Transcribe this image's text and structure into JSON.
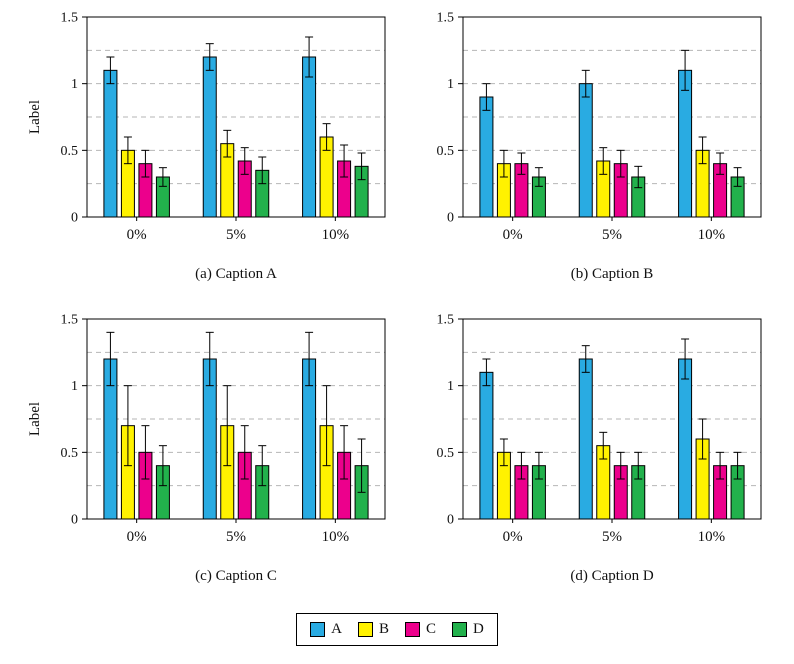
{
  "legend": {
    "position": "bottom-center",
    "entries": [
      {
        "label": "A",
        "color": "#29ABE2"
      },
      {
        "label": "B",
        "color": "#FFF200"
      },
      {
        "label": "C",
        "color": "#EC008C"
      },
      {
        "label": "D",
        "color": "#22B14C"
      }
    ]
  },
  "chart_data": [
    {
      "id": "a",
      "type": "bar",
      "title": "(a) Caption A",
      "ylabel": "Label",
      "categories": [
        "0%",
        "5%",
        "10%"
      ],
      "ylim": [
        0,
        1.5
      ],
      "yticks": [
        "0",
        "0.5",
        "1",
        "1.5"
      ],
      "grid_values": [
        0.25,
        0.5,
        0.75,
        1,
        1.25
      ],
      "grid_style": "dashed",
      "series": [
        {
          "name": "A",
          "values": [
            1.1,
            1.2,
            1.2
          ],
          "errors": [
            0.1,
            0.1,
            0.15
          ]
        },
        {
          "name": "B",
          "values": [
            0.5,
            0.55,
            0.6
          ],
          "errors": [
            0.1,
            0.1,
            0.1
          ]
        },
        {
          "name": "C",
          "values": [
            0.4,
            0.42,
            0.42
          ],
          "errors": [
            0.1,
            0.1,
            0.12
          ]
        },
        {
          "name": "D",
          "values": [
            0.3,
            0.35,
            0.38
          ],
          "errors": [
            0.07,
            0.1,
            0.1
          ]
        }
      ]
    },
    {
      "id": "b",
      "type": "bar",
      "title": "(b) Caption B",
      "ylabel": "",
      "categories": [
        "0%",
        "5%",
        "10%"
      ],
      "ylim": [
        0,
        1.5
      ],
      "yticks": [
        "0",
        "0.5",
        "1",
        "1.5"
      ],
      "grid_values": [
        0.25,
        0.5,
        0.75,
        1,
        1.25
      ],
      "grid_style": "dashed",
      "series": [
        {
          "name": "A",
          "values": [
            0.9,
            1.0,
            1.1
          ],
          "errors": [
            0.1,
            0.1,
            0.15
          ]
        },
        {
          "name": "B",
          "values": [
            0.4,
            0.42,
            0.5
          ],
          "errors": [
            0.1,
            0.1,
            0.1
          ]
        },
        {
          "name": "C",
          "values": [
            0.4,
            0.4,
            0.4
          ],
          "errors": [
            0.08,
            0.1,
            0.08
          ]
        },
        {
          "name": "D",
          "values": [
            0.3,
            0.3,
            0.3
          ],
          "errors": [
            0.07,
            0.08,
            0.07
          ]
        }
      ]
    },
    {
      "id": "c",
      "type": "bar",
      "title": "(c) Caption C",
      "ylabel": "Label",
      "categories": [
        "0%",
        "5%",
        "10%"
      ],
      "ylim": [
        0,
        1.5
      ],
      "yticks": [
        "0",
        "0.5",
        "1",
        "1.5"
      ],
      "grid_values": [
        0.25,
        0.5,
        0.75,
        1,
        1.25
      ],
      "grid_style": "dashed",
      "series": [
        {
          "name": "A",
          "values": [
            1.2,
            1.2,
            1.2
          ],
          "errors": [
            0.2,
            0.2,
            0.2
          ]
        },
        {
          "name": "B",
          "values": [
            0.7,
            0.7,
            0.7
          ],
          "errors": [
            0.3,
            0.3,
            0.3
          ]
        },
        {
          "name": "C",
          "values": [
            0.5,
            0.5,
            0.5
          ],
          "errors": [
            0.2,
            0.2,
            0.2
          ]
        },
        {
          "name": "D",
          "values": [
            0.4,
            0.4,
            0.4
          ],
          "errors": [
            0.15,
            0.15,
            0.2
          ]
        }
      ]
    },
    {
      "id": "d",
      "type": "bar",
      "title": "(d) Caption D",
      "ylabel": "",
      "categories": [
        "0%",
        "5%",
        "10%"
      ],
      "ylim": [
        0,
        1.5
      ],
      "yticks": [
        "0",
        "0.5",
        "1",
        "1.5"
      ],
      "grid_values": [
        0.25,
        0.5,
        0.75,
        1,
        1.25
      ],
      "grid_style": "dashed",
      "series": [
        {
          "name": "A",
          "values": [
            1.1,
            1.2,
            1.2
          ],
          "errors": [
            0.1,
            0.1,
            0.15
          ]
        },
        {
          "name": "B",
          "values": [
            0.5,
            0.55,
            0.6
          ],
          "errors": [
            0.1,
            0.1,
            0.15
          ]
        },
        {
          "name": "C",
          "values": [
            0.4,
            0.4,
            0.4
          ],
          "errors": [
            0.1,
            0.1,
            0.1
          ]
        },
        {
          "name": "D",
          "values": [
            0.4,
            0.4,
            0.4
          ],
          "errors": [
            0.1,
            0.1,
            0.1
          ]
        }
      ]
    }
  ]
}
